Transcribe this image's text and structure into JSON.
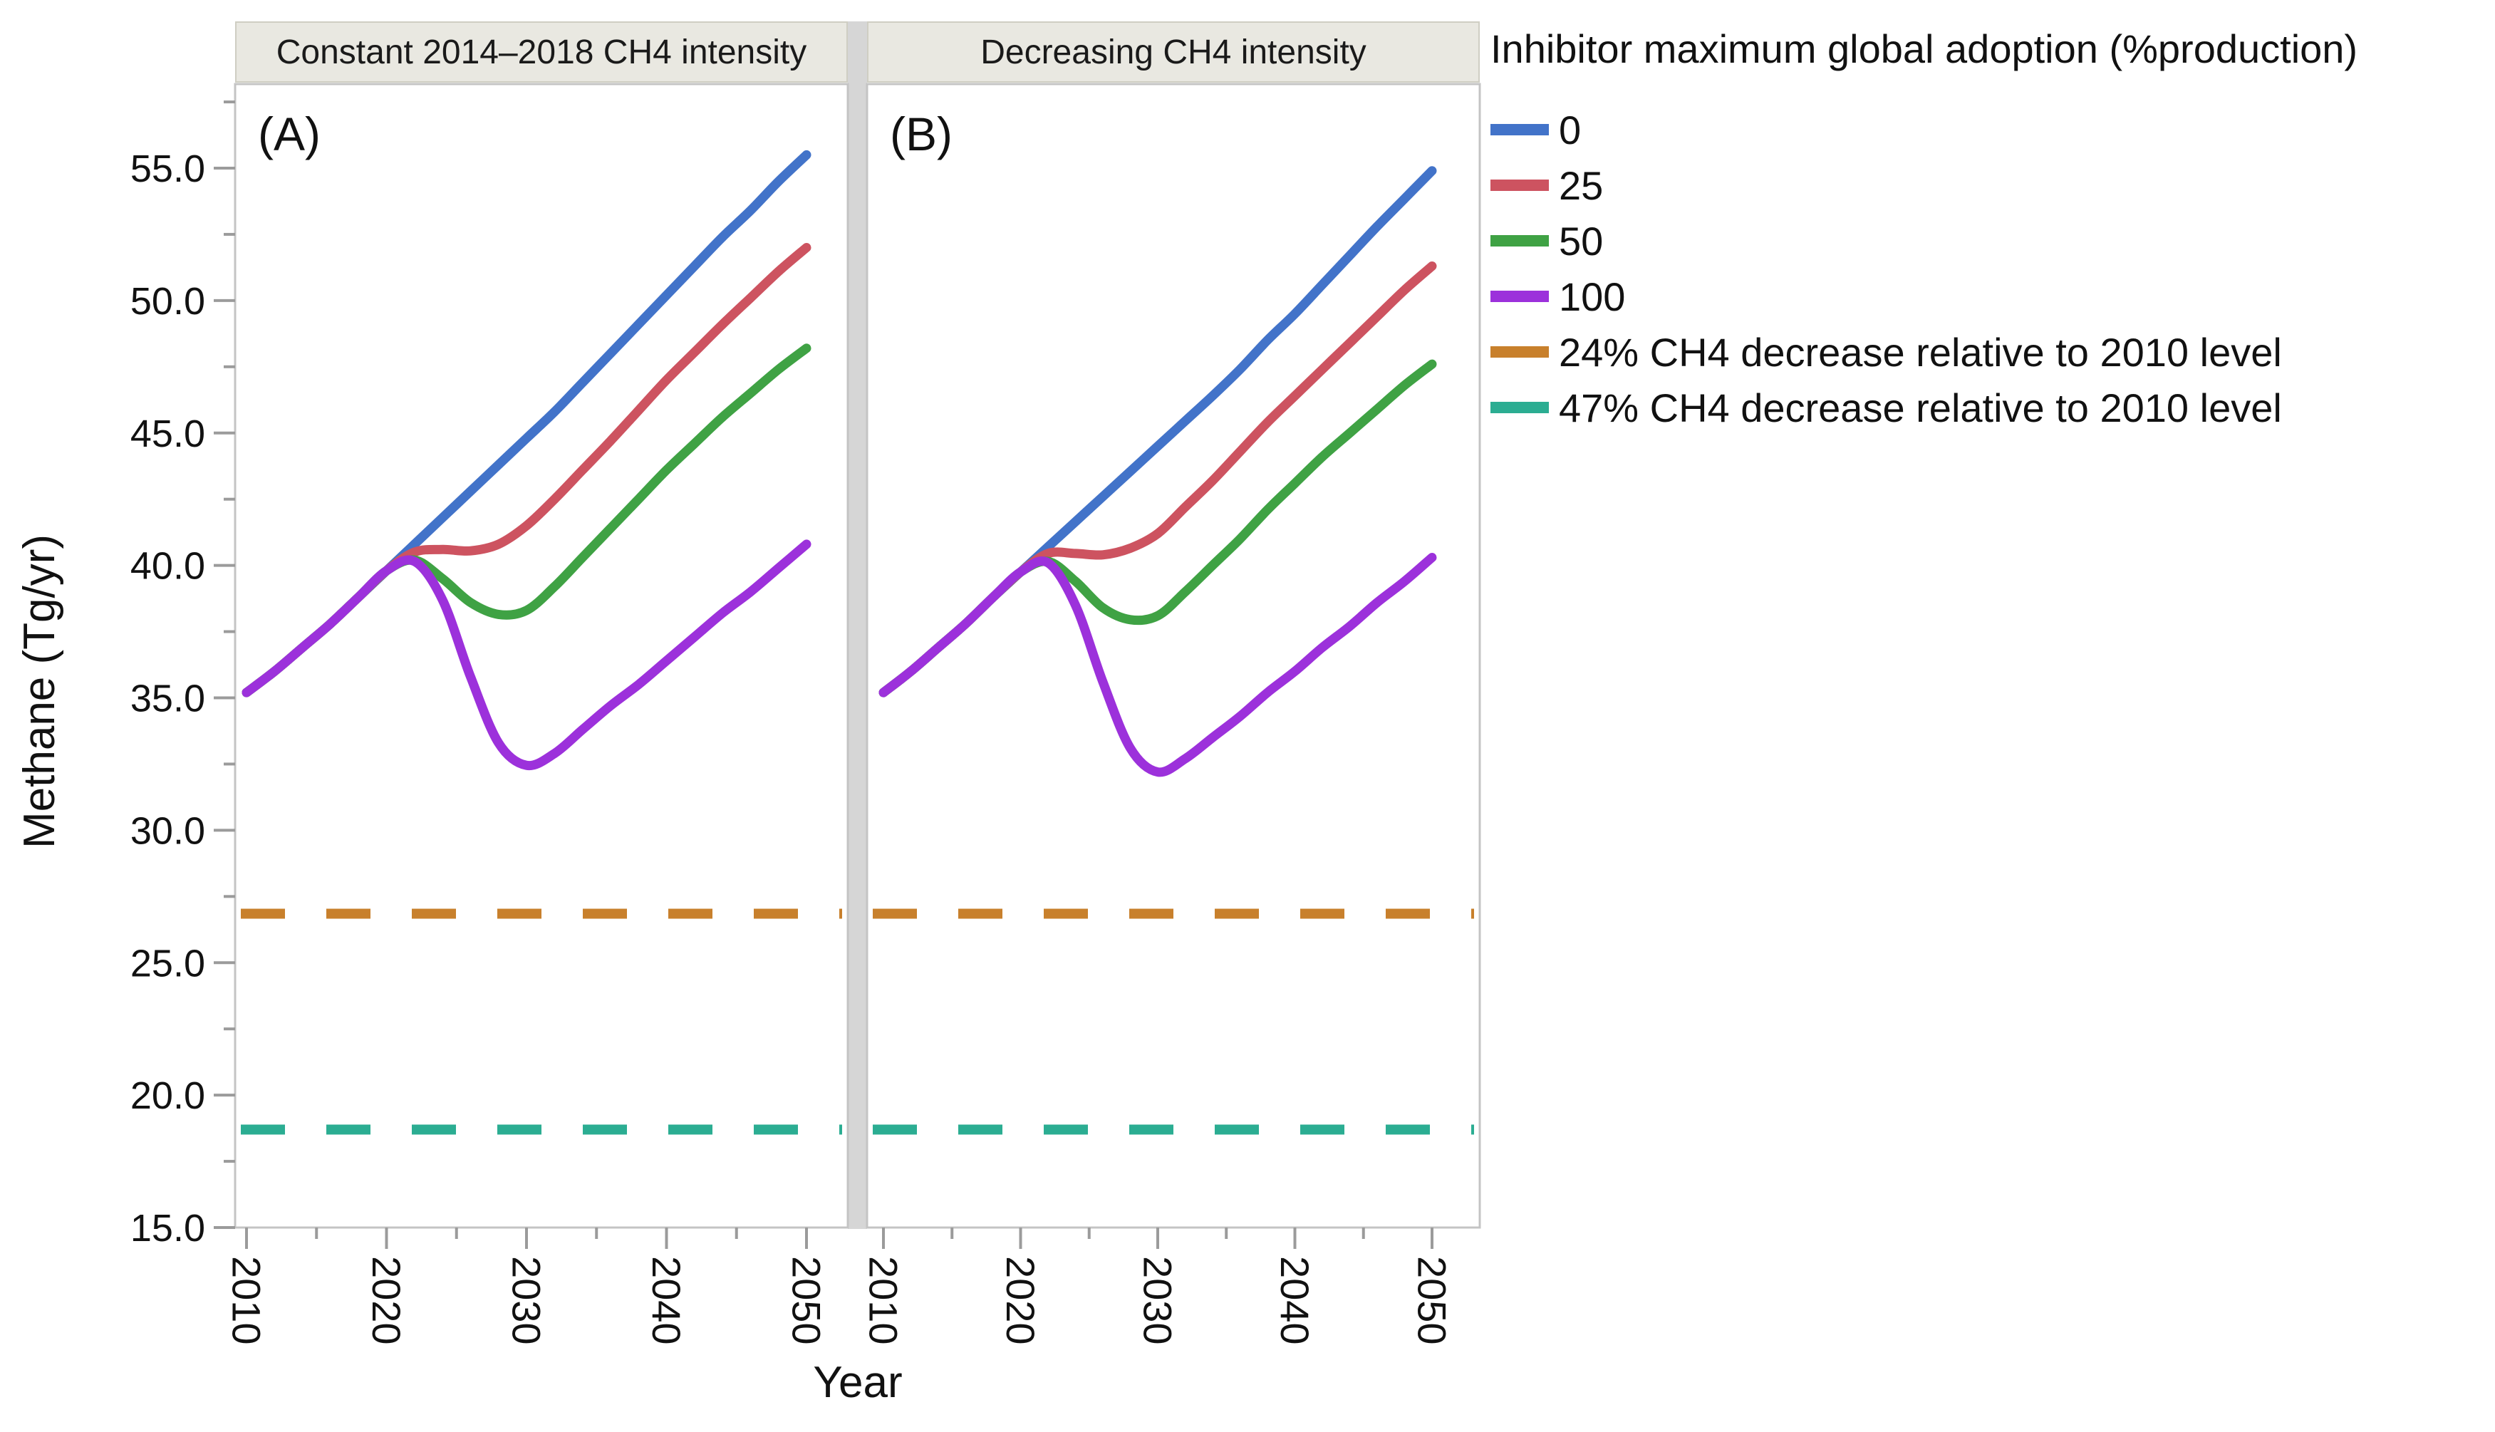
{
  "figure": {
    "background": "#ffffff",
    "panel_letters": [
      "(A)",
      "(B)"
    ]
  },
  "panels": [
    {
      "strip_title": "Constant 2014–2018 CH4 intensity",
      "annotation": "(A)"
    },
    {
      "strip_title": "Decreasing CH4 intensity",
      "annotation": "(B)"
    }
  ],
  "axes": {
    "x": {
      "title": "Year",
      "major_ticks": [
        2010,
        2020,
        2030,
        2040,
        2050
      ],
      "major_tick_labels": [
        "2010",
        "2020",
        "2030",
        "2040",
        "2050"
      ],
      "minor_ticks": [
        2015,
        2025,
        2035,
        2045
      ],
      "range": [
        2009.2,
        2053
      ]
    },
    "y": {
      "title": "Methane (Tg/yr)",
      "major_ticks": [
        15,
        20,
        25,
        30,
        35,
        40,
        45,
        50,
        55
      ],
      "major_tick_labels": [
        "15.0",
        "20.0",
        "25.0",
        "30.0",
        "35.0",
        "40.0",
        "45.0",
        "50.0",
        "55.0"
      ],
      "minor_ticks": [
        17.5,
        22.5,
        27.5,
        32.5,
        37.5,
        42.5,
        47.5,
        52.5,
        57.5
      ],
      "range": [
        15.0,
        58.2
      ]
    }
  },
  "legend": {
    "title": "Inhibitor maximum global adoption (%production)",
    "items": [
      {
        "label": "0",
        "color": "#4273C9",
        "dashed": false
      },
      {
        "label": "25",
        "color": "#CD5360",
        "dashed": false
      },
      {
        "label": "50",
        "color": "#3FA244",
        "dashed": false
      },
      {
        "label": "100",
        "color": "#9C31DB",
        "dashed": false
      },
      {
        "label": "24% CH4 decrease relative to 2010 level",
        "color": "#C8802C",
        "dashed": true
      },
      {
        "label": "47% CH4 decrease relative to 2010 level",
        "color": "#2BAD92",
        "dashed": true
      }
    ]
  },
  "chart_data": {
    "type": "line",
    "x_label": "Year",
    "y_label": "Methane (Tg/yr)",
    "ylim": [
      15.0,
      58.2
    ],
    "xlim": [
      2009,
      2053
    ],
    "grid": false,
    "legend_position": "right-top",
    "x_years": [
      2010,
      2012,
      2014,
      2016,
      2018,
      2020,
      2022,
      2024,
      2026,
      2028,
      2030,
      2032,
      2034,
      2036,
      2038,
      2040,
      2042,
      2044,
      2046,
      2048,
      2050
    ],
    "panels": [
      {
        "name": "Constant 2014–2018 CH4 intensity",
        "series": [
          {
            "name": "0",
            "color": "#4273C9",
            "values": [
              35.2,
              36.0,
              36.9,
              37.8,
              38.8,
              39.8,
              40.8,
              41.8,
              42.8,
              43.8,
              44.8,
              45.8,
              46.9,
              48.0,
              49.1,
              50.2,
              51.3,
              52.4,
              53.4,
              54.5,
              55.5
            ]
          },
          {
            "name": "25",
            "color": "#CD5360",
            "values": [
              35.2,
              36.0,
              36.9,
              37.8,
              38.8,
              39.8,
              40.5,
              40.6,
              40.55,
              40.8,
              41.5,
              42.5,
              43.6,
              44.7,
              45.85,
              47.0,
              48.05,
              49.1,
              50.1,
              51.1,
              52.0
            ]
          },
          {
            "name": "50",
            "color": "#3FA244",
            "values": [
              35.2,
              36.0,
              36.9,
              37.8,
              38.8,
              39.8,
              40.2,
              39.5,
              38.6,
              38.15,
              38.3,
              39.2,
              40.3,
              41.4,
              42.5,
              43.6,
              44.6,
              45.6,
              46.5,
              47.4,
              48.2
            ]
          },
          {
            "name": "100",
            "color": "#9C31DB",
            "values": [
              35.2,
              36.0,
              36.9,
              37.8,
              38.8,
              39.8,
              40.15,
              38.7,
              35.8,
              33.3,
              32.45,
              32.9,
              33.8,
              34.7,
              35.5,
              36.4,
              37.3,
              38.2,
              39.0,
              39.9,
              40.8
            ]
          }
        ]
      },
      {
        "name": "Decreasing CH4 intensity",
        "series": [
          {
            "name": "0",
            "color": "#4273C9",
            "values": [
              35.2,
              36.0,
              36.9,
              37.8,
              38.8,
              39.75,
              40.7,
              41.65,
              42.6,
              43.55,
              44.5,
              45.45,
              46.4,
              47.4,
              48.5,
              49.5,
              50.6,
              51.7,
              52.8,
              53.85,
              54.9
            ]
          },
          {
            "name": "25",
            "color": "#CD5360",
            "values": [
              35.2,
              36.0,
              36.9,
              37.8,
              38.8,
              39.75,
              40.45,
              40.45,
              40.4,
              40.65,
              41.2,
              42.2,
              43.2,
              44.3,
              45.4,
              46.4,
              47.4,
              48.4,
              49.4,
              50.4,
              51.3
            ]
          },
          {
            "name": "50",
            "color": "#3FA244",
            "values": [
              35.2,
              36.0,
              36.9,
              37.8,
              38.8,
              39.75,
              40.15,
              39.4,
              38.4,
              37.95,
              38.1,
              39.0,
              40.0,
              41.0,
              42.1,
              43.1,
              44.1,
              45.0,
              45.9,
              46.8,
              47.6
            ]
          },
          {
            "name": "100",
            "color": "#9C31DB",
            "values": [
              35.2,
              36.0,
              36.9,
              37.8,
              38.8,
              39.75,
              40.1,
              38.5,
              35.6,
              33.1,
              32.2,
              32.7,
              33.5,
              34.3,
              35.2,
              36.0,
              36.9,
              37.7,
              38.6,
              39.4,
              40.3
            ]
          }
        ]
      }
    ],
    "reference_lines": [
      {
        "label": "24% CH4 decrease relative to 2010 level",
        "value": 26.85,
        "color": "#C8802C",
        "style": "dashed"
      },
      {
        "label": "47% CH4 decrease relative to 2010 level",
        "value": 18.7,
        "color": "#2BAD92",
        "style": "dashed"
      }
    ]
  },
  "style": {
    "strip_background": "#e9e8e1",
    "strip_border": "#cfcec3",
    "plot_border": "#c4c4c4",
    "tick_color": "#9b9b9b",
    "divider_color": "#d6d6d6"
  }
}
